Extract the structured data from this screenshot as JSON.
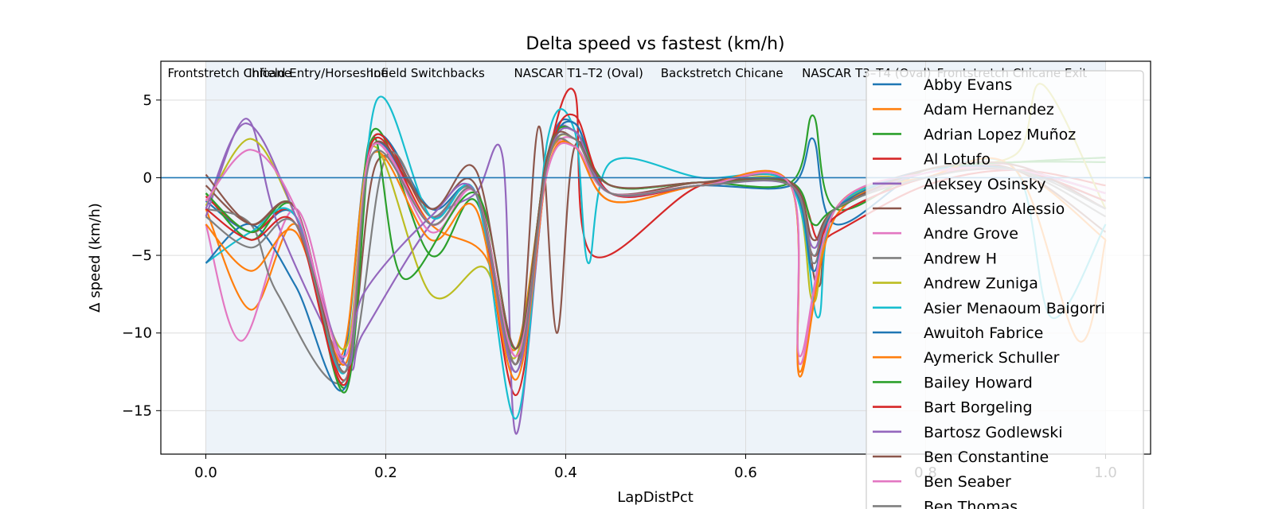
{
  "chart_data": {
    "type": "line",
    "title": "Delta speed vs fastest (km/h)",
    "xlabel": "LapDistPct",
    "ylabel": "Δ speed (km/h)",
    "xlim": [
      -0.05,
      1.05
    ],
    "ylim": [
      -17.8,
      7.5
    ],
    "xticks": [
      "0.0",
      "0.2",
      "0.4",
      "0.6",
      "0.8",
      "1.0"
    ],
    "xtick_values": [
      0.0,
      0.2,
      0.4,
      0.6,
      0.8,
      1.0
    ],
    "yticks": [
      "5",
      "0",
      "−5",
      "−10",
      "−15"
    ],
    "ytick_values": [
      5,
      0,
      -5,
      -10,
      -15
    ],
    "grid": true,
    "zero_line": 0,
    "sectors": [
      {
        "label": "Frontstretch Chicane",
        "start": 0.0
      },
      {
        "label": "Infield Entry/Horseshoe",
        "start": 0.09
      },
      {
        "label": "Infield Switchbacks",
        "start": 0.225
      },
      {
        "label": "NASCAR T1–T2 (Oval)",
        "start": 0.385
      },
      {
        "label": "Backstretch Chicane",
        "start": 0.548
      },
      {
        "label": "NASCAR T3–T4 (Oval)",
        "start": 0.705
      },
      {
        "label": "Frontstretch Chicane Exit",
        "start": 0.855
      }
    ],
    "legend_position": "right",
    "series": [
      {
        "name": "Abby Evans",
        "color": "#1f77b4",
        "x": [
          0.0,
          0.05,
          0.1,
          0.15,
          0.185,
          0.25,
          0.3,
          0.345,
          0.38,
          0.41,
          0.45,
          0.55,
          0.65,
          0.675,
          0.7,
          0.8,
          0.9,
          1.0
        ],
        "y": [
          -1.5,
          -3.5,
          -2.5,
          -12.0,
          2.5,
          -2.0,
          -1.0,
          -12.5,
          1.5,
          3.5,
          -1.0,
          -0.5,
          -0.5,
          2.5,
          -3.0,
          0.5,
          0.5,
          -1.0
        ]
      },
      {
        "name": "Adam Hernandez",
        "color": "#ff7f0e",
        "x": [
          0.0,
          0.05,
          0.1,
          0.15,
          0.185,
          0.25,
          0.31,
          0.345,
          0.38,
          0.41,
          0.45,
          0.55,
          0.65,
          0.66,
          0.7,
          0.8,
          0.9,
          1.0
        ],
        "y": [
          -2.0,
          -8.5,
          -3.0,
          -11.5,
          2.0,
          -3.0,
          -5.0,
          -11.0,
          1.0,
          2.0,
          -1.5,
          -0.5,
          -0.5,
          -12.5,
          -2.0,
          0.0,
          0.5,
          -4.0
        ]
      },
      {
        "name": "Adrian Lopez Muñoz",
        "color": "#2ca02c",
        "x": [
          0.0,
          0.05,
          0.1,
          0.155,
          0.185,
          0.25,
          0.3,
          0.345,
          0.38,
          0.41,
          0.45,
          0.55,
          0.65,
          0.675,
          0.7,
          0.8,
          0.9,
          1.0
        ],
        "y": [
          -1.0,
          -4.0,
          -2.0,
          -13.5,
          3.0,
          -5.0,
          -1.5,
          -11.0,
          1.5,
          3.0,
          -0.5,
          -0.3,
          -0.3,
          4.0,
          -2.0,
          0.5,
          1.0,
          1.0
        ]
      },
      {
        "name": "Al Lotufo",
        "color": "#d62728",
        "x": [
          0.0,
          0.05,
          0.1,
          0.155,
          0.185,
          0.25,
          0.3,
          0.345,
          0.38,
          0.41,
          0.43,
          0.55,
          0.65,
          0.68,
          0.7,
          0.8,
          0.9,
          1.0
        ],
        "y": [
          -1.2,
          -3.5,
          -2.5,
          -13.0,
          2.5,
          -2.5,
          -1.0,
          -14.0,
          1.0,
          5.5,
          -5.0,
          -0.5,
          -0.5,
          -4.0,
          -3.5,
          -0.5,
          0.5,
          -0.5
        ]
      },
      {
        "name": "Aleksey Osinsky",
        "color": "#9467bd",
        "x": [
          0.0,
          0.045,
          0.08,
          0.155,
          0.175,
          0.25,
          0.3,
          0.33,
          0.345,
          0.38,
          0.41,
          0.45,
          0.55,
          0.65,
          0.675,
          0.7,
          0.8,
          0.9,
          1.0
        ],
        "y": [
          -2.5,
          3.8,
          -3.0,
          -12.0,
          -10.0,
          -3.0,
          -1.0,
          1.3,
          -16.5,
          1.0,
          3.0,
          -1.0,
          -0.5,
          -0.5,
          -5.0,
          -2.5,
          0.0,
          0.5,
          -1.0
        ]
      },
      {
        "name": "Alessandro Alessio",
        "color": "#8c564b",
        "x": [
          0.0,
          0.05,
          0.1,
          0.155,
          0.19,
          0.25,
          0.3,
          0.345,
          0.37,
          0.39,
          0.41,
          0.45,
          0.55,
          0.65,
          0.68,
          0.7,
          0.8,
          0.9,
          1.0
        ],
        "y": [
          -0.5,
          -3.0,
          -2.0,
          -12.5,
          1.0,
          -2.0,
          -0.5,
          -12.0,
          3.3,
          -10.0,
          2.0,
          -1.0,
          -0.3,
          -0.3,
          -7.0,
          -2.0,
          0.5,
          0.5,
          -3.5
        ]
      },
      {
        "name": "Andre Grove",
        "color": "#e377c2",
        "x": [
          0.0,
          0.04,
          0.1,
          0.155,
          0.185,
          0.25,
          0.3,
          0.345,
          0.38,
          0.41,
          0.45,
          0.55,
          0.65,
          0.66,
          0.7,
          0.8,
          0.9,
          1.0
        ],
        "y": [
          -3.0,
          -10.5,
          -2.0,
          -12.0,
          2.0,
          -3.5,
          -1.0,
          -11.5,
          0.5,
          2.5,
          -1.0,
          -0.5,
          -0.5,
          -12.0,
          -2.5,
          0.0,
          0.8,
          -2.0
        ]
      },
      {
        "name": "Andrew H",
        "color": "#7f7f7f",
        "x": [
          0.0,
          0.05,
          0.08,
          0.155,
          0.2,
          0.25,
          0.3,
          0.345,
          0.38,
          0.41,
          0.45,
          0.55,
          0.65,
          0.675,
          0.7,
          0.8,
          0.9,
          1.0
        ],
        "y": [
          -2.0,
          -3.0,
          -7.5,
          -13.0,
          1.3,
          -2.5,
          -1.0,
          -12.5,
          1.0,
          2.0,
          -1.0,
          -0.5,
          -0.5,
          -5.5,
          -2.0,
          0.3,
          0.5,
          -2.5
        ]
      },
      {
        "name": "Andrew Zuniga",
        "color": "#bcbd22",
        "x": [
          0.0,
          0.05,
          0.1,
          0.155,
          0.185,
          0.25,
          0.31,
          0.345,
          0.38,
          0.41,
          0.45,
          0.55,
          0.65,
          0.675,
          0.7,
          0.8,
          0.9,
          0.93,
          1.0
        ],
        "y": [
          -1.8,
          2.5,
          -2.5,
          -11.0,
          2.0,
          -7.5,
          -5.8,
          -11.5,
          1.0,
          2.5,
          -1.0,
          -0.5,
          -0.5,
          -8.0,
          -2.0,
          0.5,
          1.5,
          6.0,
          -2.0
        ]
      },
      {
        "name": "Asier Menaoum Baigorri",
        "color": "#17becf",
        "x": [
          0.0,
          0.05,
          0.1,
          0.155,
          0.19,
          0.25,
          0.3,
          0.345,
          0.38,
          0.41,
          0.425,
          0.45,
          0.55,
          0.65,
          0.68,
          0.7,
          0.8,
          0.9,
          0.94,
          1.0
        ],
        "y": [
          -5.5,
          -3.5,
          -2.5,
          -12.5,
          5.0,
          -2.5,
          -1.0,
          -15.5,
          2.5,
          3.0,
          -5.5,
          1.0,
          0.0,
          -0.5,
          -9.0,
          -2.0,
          0.3,
          0.5,
          -9.0,
          -3.0
        ]
      },
      {
        "name": "Awuitoh Fabrice",
        "color": "#1f77b4",
        "x": [
          0.0,
          0.05,
          0.1,
          0.155,
          0.185,
          0.25,
          0.3,
          0.345,
          0.38,
          0.41,
          0.45,
          0.55,
          0.65,
          0.675,
          0.7,
          0.8,
          0.9,
          1.0
        ],
        "y": [
          -5.5,
          -3.0,
          -7.0,
          -13.5,
          2.0,
          -3.0,
          -1.0,
          -12.0,
          1.0,
          3.5,
          -1.0,
          -0.5,
          -0.5,
          -6.0,
          -2.0,
          0.5,
          0.5,
          -1.5
        ]
      },
      {
        "name": "Aymerick Schuller",
        "color": "#ff7f0e",
        "x": [
          0.0,
          0.05,
          0.1,
          0.155,
          0.185,
          0.25,
          0.3,
          0.345,
          0.38,
          0.41,
          0.45,
          0.55,
          0.65,
          0.66,
          0.7,
          0.8,
          0.9,
          0.97,
          1.0
        ],
        "y": [
          -3.0,
          -6.0,
          -3.5,
          -12.0,
          1.5,
          -4.0,
          -2.0,
          -13.0,
          0.5,
          2.0,
          -1.5,
          -0.5,
          -0.5,
          -12.8,
          -2.5,
          0.0,
          0.5,
          -10.5,
          -4.0
        ]
      },
      {
        "name": "Bailey Howard",
        "color": "#2ca02c",
        "x": [
          0.0,
          0.05,
          0.1,
          0.155,
          0.185,
          0.22,
          0.3,
          0.345,
          0.38,
          0.41,
          0.45,
          0.55,
          0.65,
          0.675,
          0.7,
          0.8,
          0.9,
          1.0
        ],
        "y": [
          -1.0,
          -3.5,
          -2.0,
          -13.8,
          2.5,
          -6.5,
          -1.0,
          -11.0,
          1.5,
          3.0,
          -0.5,
          -0.3,
          -0.3,
          -3.0,
          -2.0,
          0.5,
          1.0,
          1.3
        ]
      },
      {
        "name": "Bart Borgeling",
        "color": "#d62728",
        "x": [
          0.0,
          0.05,
          0.1,
          0.155,
          0.185,
          0.25,
          0.3,
          0.345,
          0.38,
          0.41,
          0.45,
          0.55,
          0.65,
          0.675,
          0.7,
          0.8,
          0.9,
          1.0
        ],
        "y": [
          -2.0,
          -4.0,
          -3.0,
          -13.3,
          2.3,
          -3.0,
          -1.0,
          -12.0,
          1.0,
          4.0,
          -1.0,
          -0.5,
          -0.5,
          -5.0,
          -2.5,
          0.0,
          0.5,
          -1.5
        ]
      },
      {
        "name": "Bartosz Godlewski",
        "color": "#9467bd",
        "x": [
          0.0,
          0.045,
          0.1,
          0.155,
          0.175,
          0.25,
          0.3,
          0.345,
          0.38,
          0.41,
          0.45,
          0.55,
          0.65,
          0.675,
          0.7,
          0.8,
          0.9,
          1.0
        ],
        "y": [
          -2.0,
          3.5,
          -2.5,
          -12.0,
          -7.5,
          -2.5,
          -1.0,
          -12.5,
          1.0,
          3.0,
          -1.0,
          -0.5,
          -0.5,
          -4.5,
          -2.0,
          0.3,
          0.5,
          -1.0
        ]
      },
      {
        "name": "Ben Constantine",
        "color": "#8c564b",
        "x": [
          0.0,
          0.05,
          0.1,
          0.155,
          0.185,
          0.25,
          0.3,
          0.345,
          0.38,
          0.41,
          0.45,
          0.55,
          0.65,
          0.675,
          0.7,
          0.8,
          0.9,
          1.0
        ],
        "y": [
          0.2,
          -3.0,
          -2.0,
          -12.5,
          2.0,
          -2.0,
          0.5,
          -11.0,
          1.5,
          2.5,
          -0.5,
          -0.3,
          -0.3,
          -4.0,
          -2.0,
          0.5,
          0.8,
          -2.0
        ]
      },
      {
        "name": "Ben Seaber",
        "color": "#e377c2",
        "x": [
          0.0,
          0.05,
          0.1,
          0.155,
          0.185,
          0.25,
          0.3,
          0.345,
          0.38,
          0.41,
          0.45,
          0.55,
          0.65,
          0.66,
          0.7,
          0.8,
          0.9,
          1.0
        ],
        "y": [
          -1.5,
          1.8,
          -2.0,
          -11.5,
          2.0,
          -3.0,
          -1.0,
          -11.5,
          0.5,
          2.0,
          -1.0,
          -0.5,
          -0.5,
          -11.5,
          -2.0,
          0.3,
          0.5,
          -1.0
        ]
      },
      {
        "name": "Ben Thomas",
        "color": "#7f7f7f",
        "x": [
          0.0,
          0.05,
          0.1,
          0.155,
          0.185,
          0.25,
          0.3,
          0.345,
          0.38,
          0.41,
          0.45,
          0.55,
          0.65,
          0.675,
          0.7,
          0.8,
          0.9,
          1.0
        ],
        "y": [
          -2.5,
          -4.5,
          -3.0,
          -12.5,
          1.5,
          -3.0,
          -1.0,
          -12.0,
          1.0,
          2.5,
          -1.0,
          -0.5,
          -0.5,
          -5.0,
          -2.0,
          0.0,
          0.5,
          -2.0
        ]
      }
    ]
  }
}
